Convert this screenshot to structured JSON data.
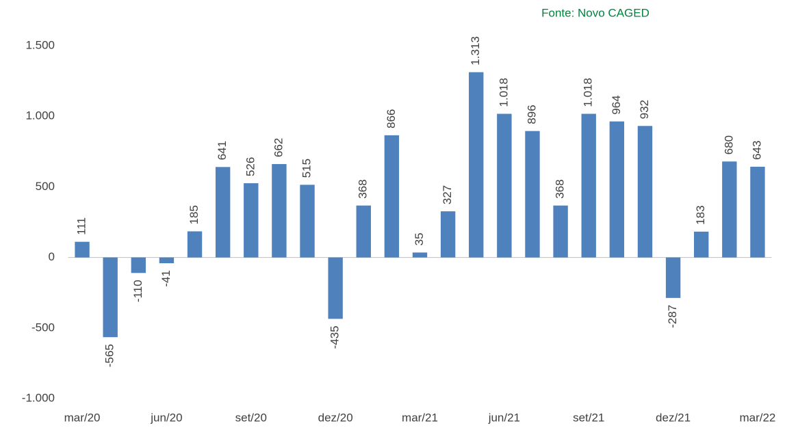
{
  "chart_data": {
    "type": "bar",
    "source": "Fonte: Novo CAGED",
    "categories": [
      "mar/20",
      null,
      null,
      "jun/20",
      null,
      null,
      "set/20",
      null,
      null,
      "dez/20",
      null,
      null,
      "mar/21",
      null,
      null,
      "jun/21",
      null,
      null,
      "set/21",
      null,
      null,
      "dez/21",
      null,
      null,
      "mar/22"
    ],
    "values": [
      111,
      -565,
      -110,
      -41,
      185,
      641,
      526,
      662,
      515,
      -435,
      368,
      866,
      35,
      327,
      1313,
      1018,
      896,
      368,
      1018,
      964,
      932,
      -287,
      183,
      680,
      643
    ],
    "value_labels": [
      "111",
      "-565",
      "-110",
      "-41",
      "185",
      "641",
      "526",
      "662",
      "515",
      "-435",
      "368",
      "866",
      "35",
      "327",
      "1.313",
      "1.018",
      "896",
      "368",
      "1.018",
      "964",
      "932",
      "-287",
      "183",
      "680",
      "643"
    ],
    "color": "#4f81bd",
    "ylim": [
      -1000,
      1500
    ],
    "yticks": [
      {
        "value": -1000,
        "label": "-1.000"
      },
      -500,
      0,
      500,
      {
        "value": 1000,
        "label": "1.000"
      },
      {
        "value": 1500,
        "label": "1.500"
      }
    ],
    "grid": false
  }
}
